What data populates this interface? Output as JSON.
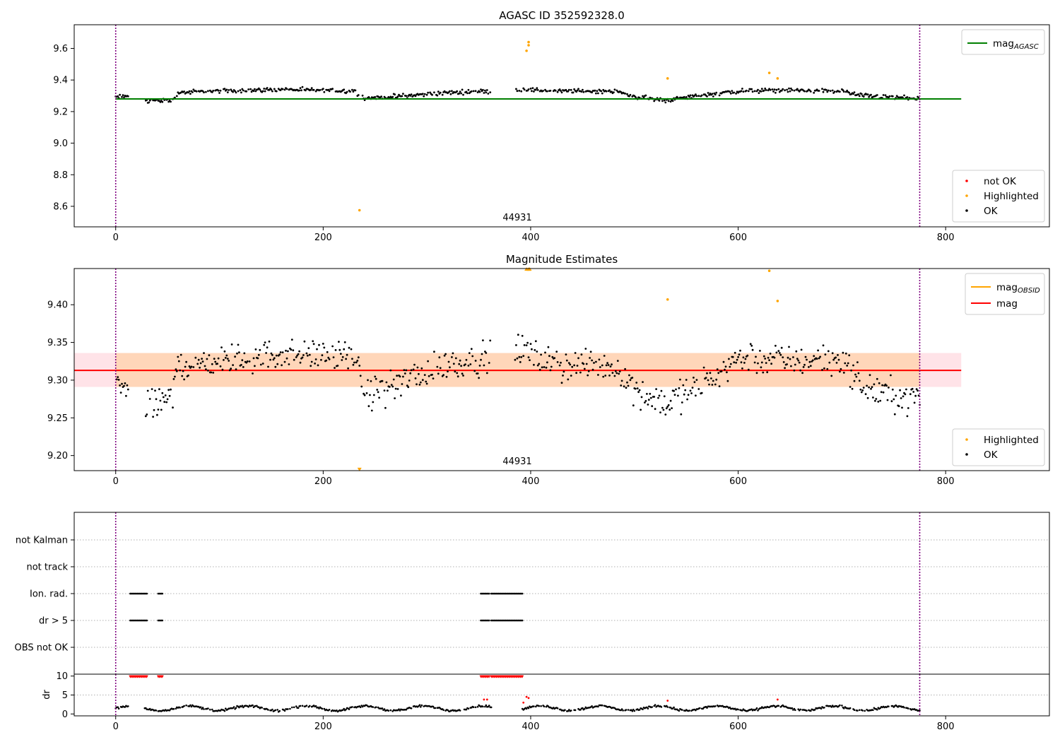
{
  "chart_data": [
    {
      "type": "scatter",
      "title": "AGASC ID 352592328.0",
      "xlim": [
        -40,
        900
      ],
      "ylim": [
        8.47,
        9.75
      ],
      "xticks": [
        0,
        200,
        400,
        600,
        800
      ],
      "yticks": [
        8.6,
        8.8,
        9.0,
        9.2,
        9.4,
        9.6
      ],
      "ytick_labels": [
        "8.6",
        "8.8",
        "9.0",
        "9.2",
        "9.4",
        "9.6"
      ],
      "obsid_label": "44931",
      "vlines": [
        0,
        775
      ],
      "hline": {
        "name": "mag_AGASC",
        "value": 9.28,
        "x_range": [
          0,
          815
        ],
        "color": "#008000"
      },
      "legend_lines": [
        {
          "main": "mag",
          "sub": "AGASC",
          "color": "#008000"
        }
      ],
      "legend_points": [
        {
          "label": "not OK",
          "color": "#ff0000"
        },
        {
          "label": "Highlighted",
          "color": "#ffa500"
        },
        {
          "label": "OK",
          "color": "#000000"
        }
      ],
      "highlighted_points": [
        [
          235,
          8.575
        ],
        [
          396,
          9.585
        ],
        [
          398,
          9.62
        ],
        [
          398,
          9.64
        ],
        [
          532,
          9.41
        ],
        [
          630,
          9.445
        ],
        [
          638,
          9.41
        ]
      ],
      "series_ok_profile": [
        [
          0,
          9.29
        ],
        [
          15,
          9.3
        ],
        [
          30,
          9.27
        ],
        [
          55,
          9.27
        ],
        [
          60,
          9.32
        ],
        [
          100,
          9.33
        ],
        [
          160,
          9.34
        ],
        [
          230,
          9.33
        ],
        [
          240,
          9.285
        ],
        [
          280,
          9.3
        ],
        [
          320,
          9.32
        ],
        [
          360,
          9.33
        ],
        [
          395,
          9.34
        ],
        [
          420,
          9.33
        ],
        [
          480,
          9.33
        ],
        [
          500,
          9.295
        ],
        [
          530,
          9.27
        ],
        [
          560,
          9.3
        ],
        [
          600,
          9.33
        ],
        [
          650,
          9.335
        ],
        [
          700,
          9.33
        ],
        [
          720,
          9.3
        ],
        [
          775,
          9.28
        ]
      ],
      "series_ok_gaps": [
        [
          12,
          28
        ],
        [
          362,
          385
        ]
      ],
      "ok_noise": 0.012
    },
    {
      "type": "scatter",
      "title": "Magnitude Estimates",
      "xlim": [
        -40,
        900
      ],
      "ylim": [
        9.18,
        9.448
      ],
      "xticks": [
        0,
        200,
        400,
        600,
        800
      ],
      "yticks": [
        9.2,
        9.25,
        9.3,
        9.35,
        9.4
      ],
      "ytick_labels": [
        "9.20",
        "9.25",
        "9.30",
        "9.35",
        "9.40"
      ],
      "obsid_label": "44931",
      "vlines": [
        0,
        775
      ],
      "mag_line": {
        "value": 9.313,
        "x_range": [
          -40,
          815
        ],
        "color": "#ff0000"
      },
      "mag_band": {
        "y_range": [
          9.291,
          9.336
        ],
        "x_range": [
          -40,
          815
        ],
        "color": "#ffc0cb"
      },
      "obsid_line": {
        "value": 9.313,
        "x_range": [
          0,
          775
        ],
        "color": "#ffa500"
      },
      "obsid_band": {
        "y_range": [
          9.291,
          9.336
        ],
        "x_range": [
          0,
          775
        ],
        "color": "#ffa500"
      },
      "legend_lines": [
        {
          "main": "mag",
          "sub": "OBSID",
          "color": "#ffa500"
        },
        {
          "main": "mag",
          "sub": "",
          "color": "#ff0000"
        }
      ],
      "legend_points": [
        {
          "label": "Highlighted",
          "color": "#ffa500"
        },
        {
          "label": "OK",
          "color": "#000000"
        }
      ],
      "highlighted_points": [
        [
          532,
          9.407
        ],
        [
          630,
          9.445
        ],
        [
          638,
          9.405
        ]
      ],
      "clipped_high": [
        [
          396,
          9.447
        ],
        [
          398,
          9.447
        ],
        [
          399,
          9.447
        ]
      ],
      "clipped_low": [
        [
          235,
          9.182
        ]
      ],
      "series_ok_profile": [
        [
          0,
          9.3
        ],
        [
          12,
          9.29
        ],
        [
          30,
          9.26
        ],
        [
          55,
          9.28
        ],
        [
          60,
          9.32
        ],
        [
          100,
          9.325
        ],
        [
          160,
          9.335
        ],
        [
          230,
          9.33
        ],
        [
          240,
          9.28
        ],
        [
          280,
          9.3
        ],
        [
          320,
          9.32
        ],
        [
          360,
          9.33
        ],
        [
          395,
          9.34
        ],
        [
          420,
          9.32
        ],
        [
          480,
          9.32
        ],
        [
          500,
          9.29
        ],
        [
          530,
          9.27
        ],
        [
          560,
          9.29
        ],
        [
          600,
          9.33
        ],
        [
          650,
          9.325
        ],
        [
          700,
          9.33
        ],
        [
          720,
          9.29
        ],
        [
          775,
          9.275
        ]
      ],
      "series_ok_gaps": [
        [
          12,
          28
        ],
        [
          362,
          385
        ]
      ],
      "ok_noise": 0.018
    },
    {
      "type": "scatter",
      "title": "",
      "xlim": [
        -40,
        900
      ],
      "categories": [
        "not Kalman",
        "not track",
        "Ion. rad.",
        "dr > 5",
        "OBS not OK"
      ],
      "vlines": [
        0,
        775
      ],
      "flag_ranges": {
        "Ion. rad.": [
          [
            14,
            30
          ],
          [
            41,
            45
          ],
          [
            352,
            360
          ],
          [
            362,
            392
          ]
        ],
        "dr > 5": [
          [
            14,
            30
          ],
          [
            41,
            45
          ],
          [
            352,
            360
          ],
          [
            362,
            392
          ]
        ]
      }
    },
    {
      "type": "scatter",
      "title": "",
      "ylabel": "dr",
      "xlim": [
        -40,
        900
      ],
      "ylim": [
        -0.5,
        10.5
      ],
      "xticks": [
        0,
        200,
        400,
        600,
        800
      ],
      "yticks": [
        0,
        5,
        10
      ],
      "ytick_labels": [
        "0",
        "5",
        "10"
      ],
      "vlines": [
        0,
        775
      ],
      "red_clipped_ranges": [
        [
          14,
          30
        ],
        [
          41,
          45
        ],
        [
          352,
          360
        ],
        [
          362,
          392
        ]
      ],
      "red_points": [
        [
          355,
          3.8
        ],
        [
          358,
          3.8
        ],
        [
          393,
          3.0
        ],
        [
          396,
          4.5
        ],
        [
          398,
          4.2
        ],
        [
          532,
          3.5
        ],
        [
          638,
          3.8
        ]
      ],
      "dr_gaps": [
        [
          12,
          28
        ],
        [
          362,
          392
        ]
      ],
      "dr_level": 1.5
    }
  ]
}
